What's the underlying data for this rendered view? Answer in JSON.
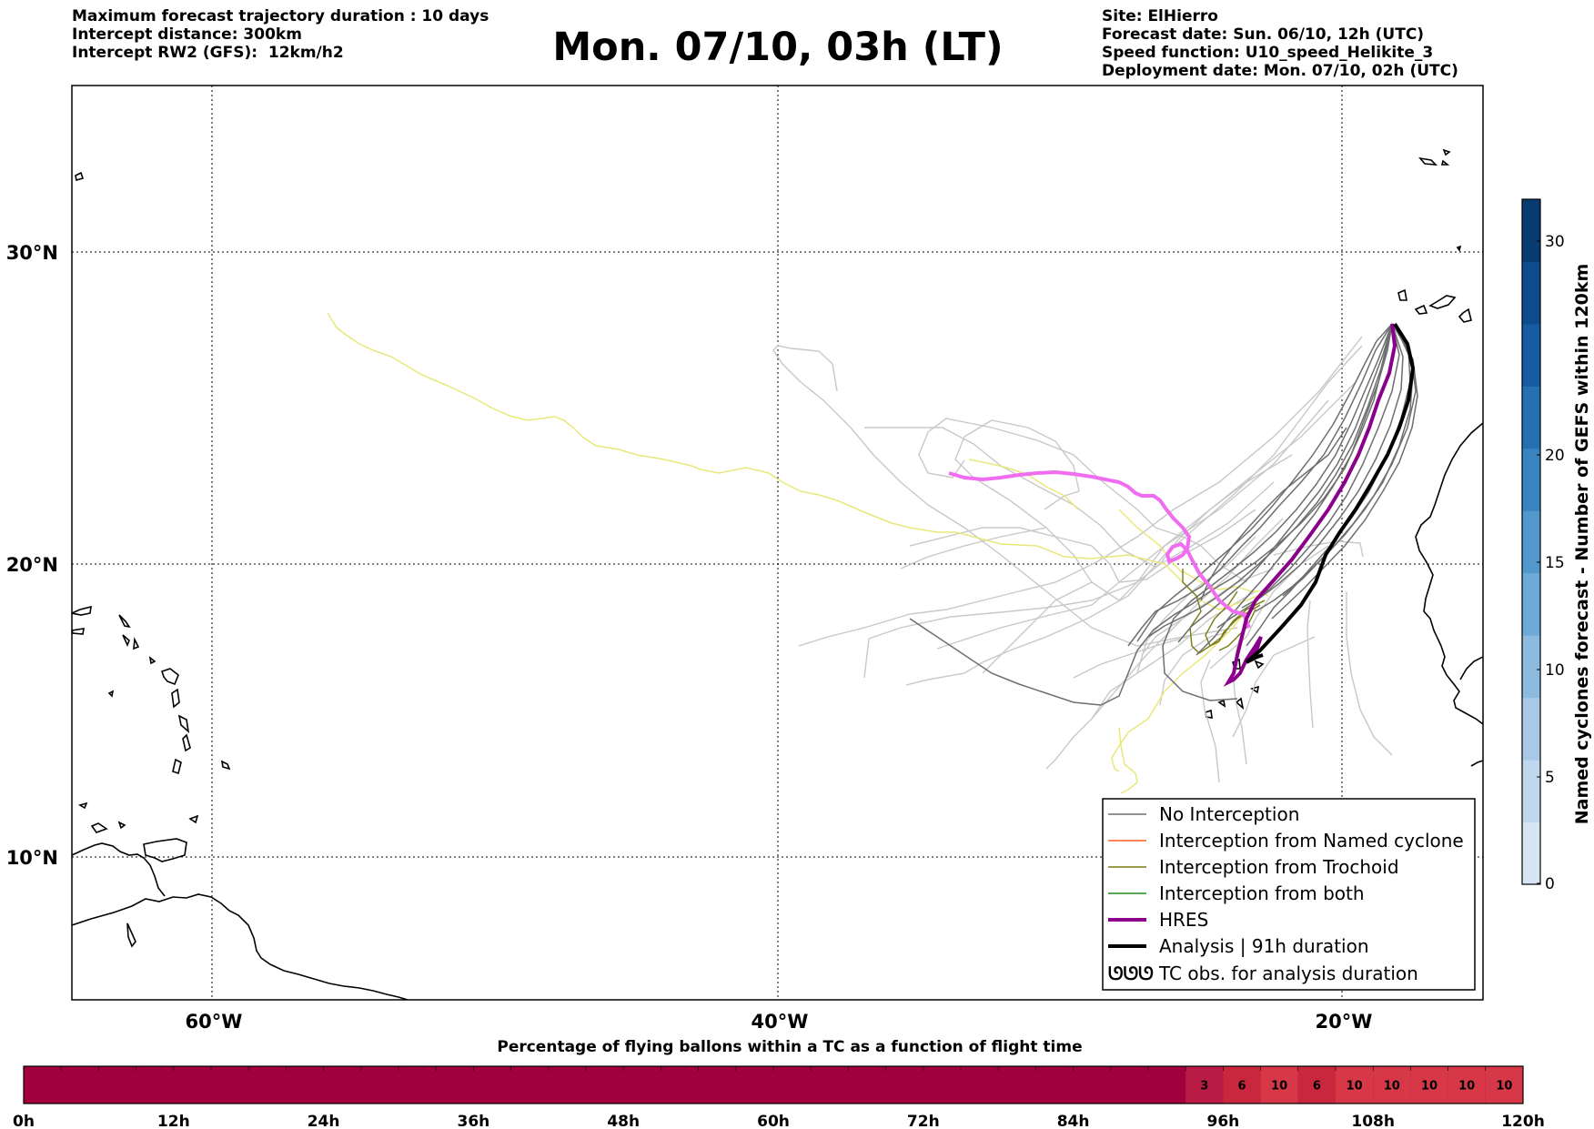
{
  "header": {
    "left_lines": [
      "Maximum forecast trajectory duration : 10 days",
      "Intercept distance: 300km",
      "Intercept RW2 (GFS):  12km/h2"
    ],
    "title": "Mon. 07/10, 03h (LT)",
    "right_lines": [
      "Site: ElHierro",
      "Forecast date: Sun. 06/10, 12h (UTC)",
      "Speed function: U10_speed_Helikite_3",
      "Deployment date: Mon. 07/10, 02h (UTC)"
    ]
  },
  "map": {
    "lat_labels": [
      "30°N",
      "20°N",
      "10°N"
    ],
    "lon_labels": [
      "60°W",
      "40°W",
      "20°W"
    ],
    "colors": {
      "no_interception": "#6e6e6e",
      "ensemble_light": "#c8c8c8",
      "yellow_track": "#e8e87a",
      "named_cyclone": "#ff5a1e",
      "trochoid": "#7a7a14",
      "both": "#1e8c1e",
      "hres": "#8b008b",
      "hres_fore": "#f06cf0",
      "analysis": "#000000",
      "coast": "#000000"
    }
  },
  "legend": {
    "entries": [
      {
        "label": "No Interception",
        "color": "#6e6e6e",
        "style": "thin"
      },
      {
        "label": "Interception from Named cyclone",
        "color": "#ff5a1e",
        "style": "thin"
      },
      {
        "label": "Interception from Trochoid",
        "color": "#7a7a14",
        "style": "thin"
      },
      {
        "label": "Interception from both",
        "color": "#1e8c1e",
        "style": "thin"
      },
      {
        "label": "HRES",
        "color": "#8b008b",
        "style": "thick"
      },
      {
        "label": "Analysis | 91h duration",
        "color": "#000000",
        "style": "thick"
      },
      {
        "label": "TC obs. for analysis duration",
        "color": "#000000",
        "style": "symbol",
        "symbol": "ᘎᘎᘎ"
      }
    ]
  },
  "colorbar": {
    "title": "Named cyclones forecast - Number of GEFS within 120km",
    "ticks": [
      "0",
      "5",
      "10",
      "15",
      "20",
      "30"
    ],
    "colors": [
      "#d6e4f4",
      "#c1d7ee",
      "#a8c9e6",
      "#8dbadf",
      "#6fa9d7",
      "#5298cd",
      "#3a83c1",
      "#266fb3",
      "#165ca2",
      "#0d4b8c",
      "#083b6f"
    ]
  },
  "progress_bar": {
    "title": "Percentage of flying ballons within a TC as a function of flight time",
    "ticks": [
      "0h",
      "12h",
      "24h",
      "36h",
      "48h",
      "60h",
      "72h",
      "84h",
      "96h",
      "108h",
      "120h"
    ],
    "base_color": "#a1003c",
    "cells": [
      {
        "value": "3",
        "color": "#bb1c46"
      },
      {
        "value": "6",
        "color": "#c9273e"
      },
      {
        "value": "10",
        "color": "#d63847"
      },
      {
        "value": "6",
        "color": "#c9273e"
      },
      {
        "value": "10",
        "color": "#d63847"
      },
      {
        "value": "10",
        "color": "#d63847"
      },
      {
        "value": "10",
        "color": "#d63847"
      },
      {
        "value": "10",
        "color": "#d63847"
      },
      {
        "value": "10",
        "color": "#d63847"
      }
    ]
  }
}
